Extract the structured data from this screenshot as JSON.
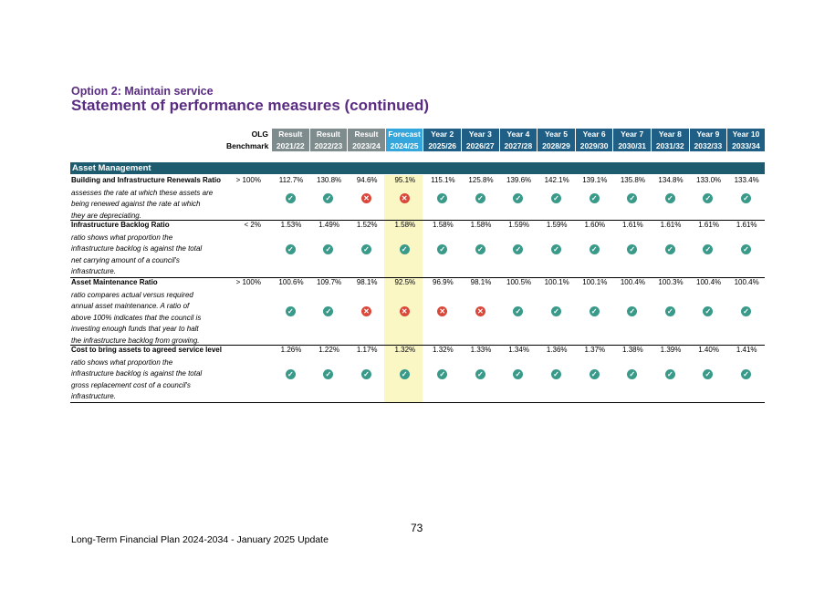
{
  "header": {
    "subtitle": "Option 2: Maintain service",
    "title": "Statement of performance measures (continued)"
  },
  "columns": {
    "olg": [
      "OLG",
      "Benchmark"
    ],
    "years": [
      {
        "kind": "res",
        "top": "Result",
        "bottom": "2021/22"
      },
      {
        "kind": "res",
        "top": "Result",
        "bottom": "2022/23"
      },
      {
        "kind": "res",
        "top": "Result",
        "bottom": "2023/24"
      },
      {
        "kind": "fc",
        "top": "Forecast",
        "bottom": "2024/25"
      },
      {
        "kind": "yr",
        "top": "Year 2",
        "bottom": "2025/26"
      },
      {
        "kind": "yr",
        "top": "Year 3",
        "bottom": "2026/27"
      },
      {
        "kind": "yr",
        "top": "Year 4",
        "bottom": "2027/28"
      },
      {
        "kind": "yr",
        "top": "Year 5",
        "bottom": "2028/29"
      },
      {
        "kind": "yr",
        "top": "Year 6",
        "bottom": "2029/30"
      },
      {
        "kind": "yr",
        "top": "Year 7",
        "bottom": "2030/31"
      },
      {
        "kind": "yr",
        "top": "Year 8",
        "bottom": "2031/32"
      },
      {
        "kind": "yr",
        "top": "Year 9",
        "bottom": "2032/33"
      },
      {
        "kind": "yr",
        "top": "Year 10",
        "bottom": "2033/34"
      }
    ]
  },
  "section": "Asset Management",
  "measures": [
    {
      "label": "Building and Infrastructure Renewals Ratio",
      "description": [
        "assesses the rate at which these assets are",
        "being renewed against the rate at which",
        "they are depreciating."
      ],
      "benchmark": "> 100%",
      "values": [
        "112.7%",
        "130.8%",
        "94.6%",
        "95.1%",
        "115.1%",
        "125.8%",
        "139.6%",
        "142.1%",
        "139.1%",
        "135.8%",
        "134.8%",
        "133.0%",
        "133.4%"
      ],
      "status": [
        "ok",
        "ok",
        "bad",
        "bad",
        "ok",
        "ok",
        "ok",
        "ok",
        "ok",
        "ok",
        "ok",
        "ok",
        "ok"
      ]
    },
    {
      "label": "Infrastructure Backlog Ratio",
      "description": [
        "ratio shows what proportion the",
        "infrastructure backlog is against the total",
        "net carrying amount of a council's",
        "infrastructure."
      ],
      "benchmark": "< 2%",
      "values": [
        "1.53%",
        "1.49%",
        "1.52%",
        "1.58%",
        "1.58%",
        "1.58%",
        "1.59%",
        "1.59%",
        "1.60%",
        "1.61%",
        "1.61%",
        "1.61%",
        "1.61%"
      ],
      "status": [
        "ok",
        "ok",
        "ok",
        "ok",
        "ok",
        "ok",
        "ok",
        "ok",
        "ok",
        "ok",
        "ok",
        "ok",
        "ok"
      ]
    },
    {
      "label": "Asset Maintenance Ratio",
      "description": [
        "ratio compares actual versus required",
        "annual asset maintenance. A ratio of",
        "above 100% indicates that the council is",
        "investing enough funds that year to halt",
        "the infrastructure backlog from growing."
      ],
      "benchmark": "> 100%",
      "values": [
        "100.6%",
        "109.7%",
        "98.1%",
        "92.5%",
        "96.9%",
        "98.1%",
        "100.5%",
        "100.1%",
        "100.1%",
        "100.4%",
        "100.3%",
        "100.4%",
        "100.4%"
      ],
      "status": [
        "ok",
        "ok",
        "bad",
        "bad",
        "bad",
        "bad",
        "ok",
        "ok",
        "ok",
        "ok",
        "ok",
        "ok",
        "ok"
      ]
    },
    {
      "label": "Cost to bring assets to agreed service level",
      "description": [
        "ratio shows what proportion the",
        "infrastructure backlog is against the total",
        "gross replacement cost of a council's",
        "infrastructure."
      ],
      "benchmark": "",
      "values": [
        "1.26%",
        "1.22%",
        "1.17%",
        "1.32%",
        "1.32%",
        "1.33%",
        "1.34%",
        "1.36%",
        "1.37%",
        "1.38%",
        "1.39%",
        "1.40%",
        "1.41%"
      ],
      "status": [
        "ok",
        "ok",
        "ok",
        "ok",
        "ok",
        "ok",
        "ok",
        "ok",
        "ok",
        "ok",
        "ok",
        "ok",
        "ok"
      ]
    }
  ],
  "icons": {
    "ok": "check-circle-icon",
    "bad": "cross-circle-icon",
    "ok_color": "#3a9a8a",
    "bad_color": "#d9483a"
  },
  "colors": {
    "title": "#5b2c83",
    "result_header": "#7f8c8d",
    "forecast_header": "#34a6dc",
    "year_header": "#1f5f86",
    "section": "#1c5c6e",
    "forecast_band": "#fbf7c4"
  },
  "footer": {
    "page_number": "73",
    "document": "Long-Term Financial Plan 2024-2034 - January 2025 Update"
  }
}
